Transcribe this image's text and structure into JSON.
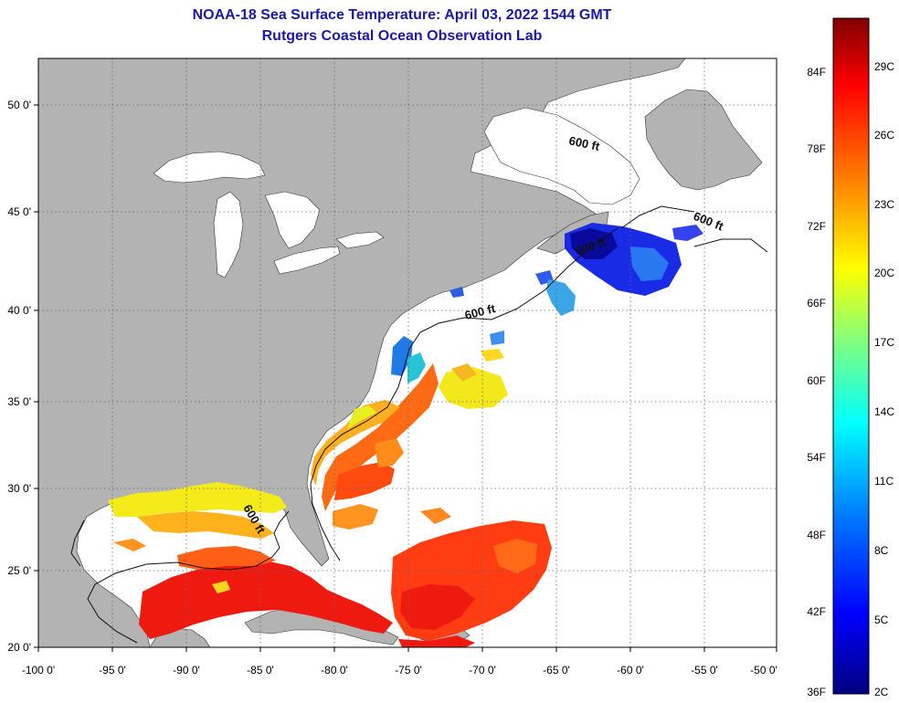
{
  "header": {
    "title": "NOAA-18 Sea Surface Temperature:  April 03, 2022 1544 GMT",
    "subtitle": "Rutgers Coastal Ocean Observation Lab"
  },
  "axes": {
    "lon_labels": [
      "-100 0'",
      "-95 0'",
      "-90 0'",
      "-85 0'",
      "-80 0'",
      "-75 0'",
      "-70 0'",
      "-65 0'",
      "-60 0'",
      "-55 0'",
      "-50 0'"
    ],
    "lat_labels": [
      "20 0'",
      "25 0'",
      "30 0'",
      "35 0'",
      "40 0'",
      "45 0'",
      "50 0'"
    ]
  },
  "contour_labels": [
    "600 ft",
    "600 ft",
    "600 ft",
    "600 ft",
    "600 ft"
  ],
  "colorbar": {
    "fahrenheit": [
      "84F",
      "78F",
      "72F",
      "66F",
      "60F",
      "54F",
      "48F",
      "42F",
      "36F"
    ],
    "celsius": [
      "29C",
      "26C",
      "23C",
      "20C",
      "17C",
      "14C",
      "11C",
      "8C",
      "5C",
      "2C"
    ]
  },
  "colors": {
    "land": "#b3b3b3",
    "ocean": "#ffffff",
    "title": "#1a1aa6",
    "scale": [
      "#000080",
      "#0000ff",
      "#0080ff",
      "#00ffff",
      "#80ff80",
      "#ffff00",
      "#ff8000",
      "#ff0000",
      "#800000"
    ]
  }
}
